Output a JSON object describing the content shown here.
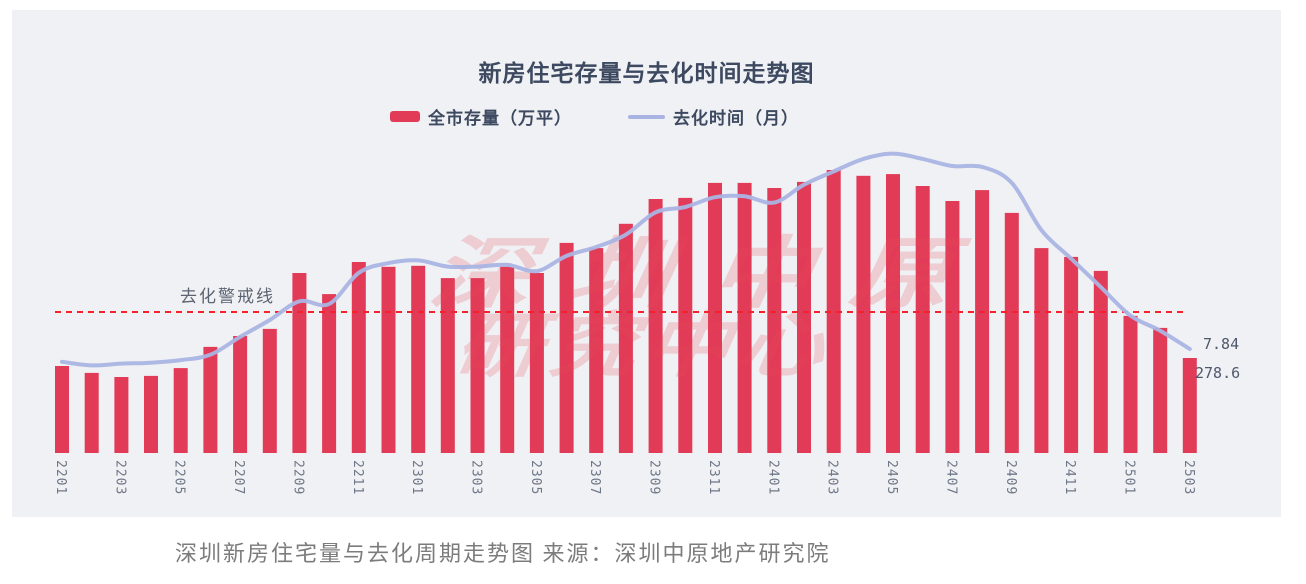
{
  "page": {
    "background": "#ffffff",
    "panel_background": "#f0f1f4"
  },
  "chart": {
    "title": "新房住宅存量与去化时间走势图",
    "legend": [
      {
        "label": "全市存量（万平）",
        "marker": "bar-swatch",
        "color": "#e23b57"
      },
      {
        "label": "去化时间（月）",
        "marker": "line-swatch",
        "color": "#aab4e3"
      }
    ],
    "warning_line_label": "去化警戒线",
    "end_value_labels": {
      "line": "7.84",
      "bar": "278.6"
    }
  },
  "watermark": {
    "line1": "深圳中原",
    "line2": "研究中心"
  },
  "caption": "深圳新房住宅量与去化周期走势图  来源：深圳中原地产研究院",
  "chart_data": {
    "type": "bar",
    "subtype": "bar+line combo",
    "title": "新房住宅存量与去化时间走势图",
    "categories": [
      "2201",
      "2202",
      "2203",
      "2204",
      "2205",
      "2206",
      "2207",
      "2208",
      "2209",
      "2210",
      "2211",
      "2212",
      "2301",
      "2302",
      "2303",
      "2304",
      "2305",
      "2306",
      "2307",
      "2308",
      "2309",
      "2310",
      "2311",
      "2312",
      "2401",
      "2402",
      "2403",
      "2404",
      "2405",
      "2406",
      "2407",
      "2408",
      "2409",
      "2410",
      "2411",
      "2412",
      "2501",
      "2502",
      "2503"
    ],
    "x_axis_tick_labels": [
      "2201",
      "2203",
      "2205",
      "2207",
      "2209",
      "2211",
      "2301",
      "2303",
      "2305",
      "2307",
      "2309",
      "2311",
      "2401",
      "2403",
      "2405",
      "2407",
      "2409",
      "2411",
      "2501",
      "2503"
    ],
    "series": [
      {
        "name": "全市存量（万平）",
        "type": "bar",
        "color": "#e23b57",
        "unit": "万平",
        "estimated": true,
        "values": [
          255,
          235,
          223,
          226,
          249,
          311,
          343,
          364,
          528,
          466,
          560,
          546,
          549,
          513,
          513,
          546,
          528,
          616,
          601,
          672,
          745,
          748,
          792,
          792,
          777,
          795,
          830,
          813,
          818,
          783,
          739,
          771,
          704,
          601,
          575,
          534,
          402,
          367,
          278.6
        ]
      },
      {
        "name": "去化时间（月）",
        "type": "line",
        "color": "#aab4e3",
        "unit": "月",
        "estimated": true,
        "values": [
          6.4,
          6.0,
          6.2,
          6.3,
          6.6,
          7.2,
          9.2,
          11.1,
          13.2,
          12.9,
          16.4,
          17.5,
          17.8,
          17.1,
          17.1,
          17.3,
          16.6,
          18.3,
          19.3,
          20.7,
          23.2,
          23.8,
          24.9,
          25.0,
          24.3,
          26.3,
          27.8,
          29.2,
          29.8,
          29.2,
          28.4,
          28.3,
          26.5,
          21.2,
          18.0,
          14.8,
          11.6,
          9.9,
          7.84
        ]
      }
    ],
    "warning_line": {
      "label": "去化警戒线",
      "value_months": 12,
      "style": "dashed",
      "color": "#f5222d"
    },
    "annotations": [
      {
        "text": "7.84",
        "series": "去化时间（月）",
        "category": "2503"
      },
      {
        "text": "278.6",
        "series": "全市存量（万平）",
        "category": "2503"
      }
    ],
    "y_axis": {
      "visible_ticks": false,
      "bar_axis_range_estimate": [
        0,
        880
      ],
      "line_axis_range_estimate": [
        0,
        32
      ]
    },
    "legend_position": "top-center",
    "grid": false
  },
  "colors": {
    "bar": "#e23b57",
    "line": "#aab4e3",
    "warning_dash": "#f5222d",
    "axis_label": "#6e7787",
    "title_text": "#3d4960",
    "caption_text": "#7c7c7c"
  }
}
